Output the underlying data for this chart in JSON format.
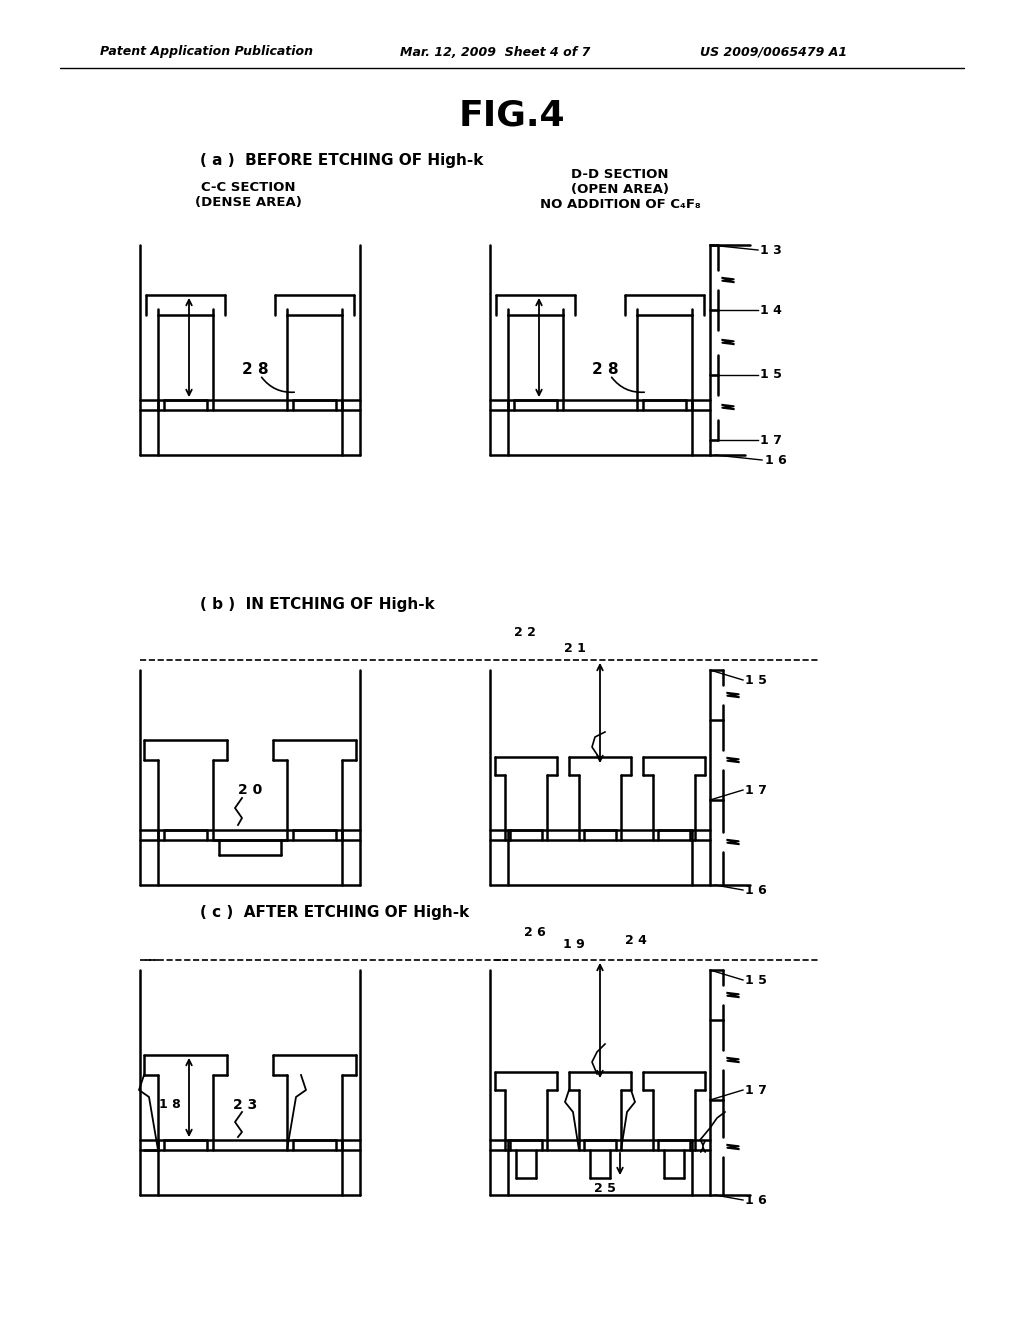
{
  "bg_color": "#ffffff",
  "lc": "#000000",
  "header_left": "Patent Application Publication",
  "header_mid": "Mar. 12, 2009  Sheet 4 of 7",
  "header_right": "US 2009/0065479 A1",
  "fig_title": "FIG.4",
  "label_a": "( a )  BEFORE ETCHING OF High-k",
  "label_b": "( b )  IN ETCHING OF High-k",
  "label_c": "( c )  AFTER ETCHING OF High-k",
  "cc_label": "C-C SECTION\n(DENSE AREA)",
  "dd_label": "D-D SECTION\n(OPEN AREA)\nNO ADDITION OF C₄F₈"
}
